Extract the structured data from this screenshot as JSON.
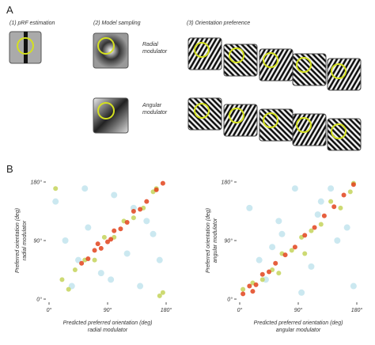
{
  "panel_labels": [
    "A",
    "B"
  ],
  "panel_a": {
    "steps": [
      "(1) pRF estimation",
      "(2) Model sampling",
      "(3) Orientation preference"
    ],
    "modulators": [
      [
        "Radial",
        "modulator"
      ],
      [
        "Angular",
        "modulator"
      ]
    ]
  },
  "chart_data": [
    {
      "type": "scatter",
      "xlabel": "Predicted preferred orientation (deg)",
      "xlabel_sub": "radial modulator",
      "ylabel": "Preferred orientation (deg)",
      "ylabel_sub": "radial modulator",
      "xlim": [
        0,
        180
      ],
      "ylim": [
        0,
        180
      ],
      "xticks": [
        {
          "value": 0,
          "label": "0°"
        },
        {
          "value": 90,
          "label": "90°"
        },
        {
          "value": 180,
          "label": "180°"
        }
      ],
      "yticks": [
        {
          "value": 0,
          "label": "0°"
        },
        {
          "value": 90,
          "label": "90°"
        },
        {
          "value": 180,
          "label": "180°"
        }
      ],
      "series": [
        {
          "color": "#a8d8e6",
          "x": [
            10,
            35,
            60,
            80,
            100,
            120,
            150,
            170,
            25,
            55,
            95,
            130,
            160,
            45,
            140
          ],
          "values": [
            150,
            20,
            110,
            40,
            160,
            70,
            120,
            60,
            90,
            170,
            30,
            140,
            100,
            60,
            20
          ]
        },
        {
          "color": "#c4d45a",
          "x": [
            20,
            40,
            55,
            70,
            85,
            100,
            115,
            130,
            145,
            160,
            10,
            175,
            170,
            30,
            165
          ],
          "values": [
            30,
            45,
            60,
            60,
            95,
            95,
            120,
            125,
            140,
            165,
            170,
            10,
            5,
            15,
            170
          ]
        },
        {
          "color": "#e2431c",
          "x": [
            50,
            60,
            70,
            80,
            90,
            100,
            110,
            120,
            130,
            140,
            150,
            165,
            175,
            75,
            95
          ],
          "values": [
            55,
            62,
            75,
            78,
            88,
            105,
            108,
            118,
            135,
            138,
            150,
            168,
            178,
            85,
            92
          ]
        }
      ]
    },
    {
      "type": "scatter",
      "xlabel": "Predicted preferred orientation (deg)",
      "xlabel_sub": "angular modulator",
      "ylabel": "Preferred orientation (deg)",
      "ylabel_sub": "angular modulator",
      "xlim": [
        0,
        180
      ],
      "ylim": [
        0,
        180
      ],
      "xticks": [
        {
          "value": 0,
          "label": "0°"
        },
        {
          "value": 90,
          "label": "90°"
        },
        {
          "value": 180,
          "label": "180°"
        }
      ],
      "yticks": [
        {
          "value": 0,
          "label": "0°"
        },
        {
          "value": 90,
          "label": "90°"
        },
        {
          "value": 180,
          "label": "180°"
        }
      ],
      "series": [
        {
          "color": "#a8d8e6",
          "x": [
            15,
            40,
            65,
            85,
            110,
            125,
            150,
            175,
            30,
            60,
            95,
            140,
            165,
            50,
            120
          ],
          "values": [
            140,
            30,
            100,
            170,
            50,
            150,
            90,
            20,
            60,
            120,
            10,
            170,
            110,
            80,
            130
          ]
        },
        {
          "color": "#c4d45a",
          "x": [
            5,
            20,
            35,
            50,
            65,
            80,
            95,
            110,
            125,
            140,
            155,
            170,
            60,
            100,
            175
          ],
          "values": [
            15,
            25,
            30,
            45,
            70,
            75,
            95,
            105,
            115,
            150,
            140,
            165,
            40,
            70,
            178
          ]
        },
        {
          "color": "#e2431c",
          "x": [
            5,
            15,
            25,
            35,
            45,
            55,
            70,
            85,
            100,
            115,
            130,
            145,
            160,
            175,
            20
          ],
          "values": [
            8,
            20,
            22,
            38,
            42,
            55,
            68,
            80,
            98,
            110,
            128,
            142,
            160,
            176,
            12
          ]
        }
      ]
    }
  ]
}
